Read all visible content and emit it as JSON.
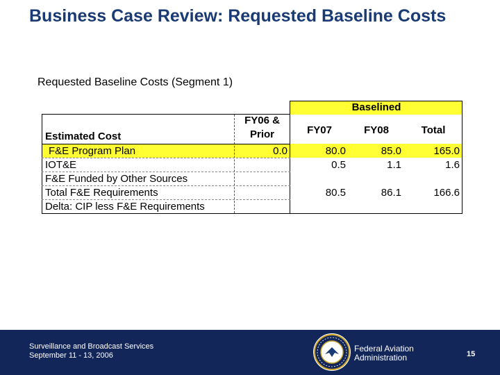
{
  "slide": {
    "title": "Business Case Review: Requested Baseline Costs",
    "subtitle": "Requested Baseline Costs (Segment 1)"
  },
  "table": {
    "group_header": "Baselined",
    "header_col1": "Estimated Cost",
    "header_prior_line1": "FY06 &",
    "header_prior_line2": "Prior",
    "header_fy07": "FY07",
    "header_fy08": "FY08",
    "header_total": "Total",
    "rows": [
      {
        "label": "F&E Program Plan",
        "prior": "0.0",
        "fy07": "80.0",
        "fy08": "85.0",
        "total": "165.0",
        "highlight": true
      },
      {
        "label": "IOT&E",
        "prior": "",
        "fy07": "0.5",
        "fy08": "1.1",
        "total": "1.6",
        "highlight": false
      },
      {
        "label": "F&E Funded by Other Sources",
        "prior": "",
        "fy07": "",
        "fy08": "",
        "total": "",
        "highlight": false
      },
      {
        "label": "Total F&E Requirements",
        "prior": "",
        "fy07": "80.5",
        "fy08": "86.1",
        "total": "166.6",
        "highlight": false
      },
      {
        "label": "Delta: CIP less F&E Requirements",
        "prior": "",
        "fy07": "",
        "fy08": "",
        "total": "",
        "highlight": false
      }
    ],
    "colors": {
      "highlight": "#ffff33",
      "border": "#000000"
    }
  },
  "footer": {
    "line1": "Surveillance and Broadcast Services",
    "line2": "September 11 - 13, 2006",
    "agency_line1": "Federal Aviation",
    "agency_line2": "Administration",
    "page_number": "15",
    "seal_icon": "faa-seal-icon",
    "background": "#13265a"
  }
}
